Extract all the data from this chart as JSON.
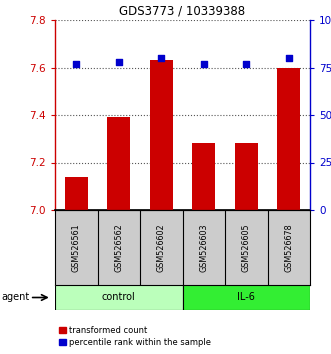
{
  "title": "GDS3773 / 10339388",
  "samples": [
    "GSM526561",
    "GSM526562",
    "GSM526602",
    "GSM526603",
    "GSM526605",
    "GSM526678"
  ],
  "bar_values": [
    7.14,
    7.39,
    7.63,
    7.28,
    7.28,
    7.6
  ],
  "percentile_values": [
    77,
    78,
    80,
    77,
    77,
    80
  ],
  "ylim_left": [
    7.0,
    7.8
  ],
  "ylim_right": [
    0,
    100
  ],
  "yticks_left": [
    7.0,
    7.2,
    7.4,
    7.6,
    7.8
  ],
  "yticks_right": [
    0,
    25,
    50,
    75,
    100
  ],
  "ytick_labels_right": [
    "0",
    "25",
    "50",
    "75",
    "100%"
  ],
  "bar_color": "#cc0000",
  "dot_color": "#0000cc",
  "bar_bottom": 7.0,
  "groups": [
    {
      "label": "control",
      "indices": [
        0,
        1,
        2
      ],
      "color": "#bbffbb"
    },
    {
      "label": "IL-6",
      "indices": [
        3,
        4,
        5
      ],
      "color": "#33ee33"
    }
  ],
  "agent_label": "agent",
  "legend_items": [
    {
      "label": "transformed count",
      "color": "#cc0000"
    },
    {
      "label": "percentile rank within the sample",
      "color": "#0000cc"
    }
  ],
  "grid_color": "#555555",
  "bg_color": "#ffffff",
  "plot_bg": "#ffffff",
  "sample_box_color": "#cccccc"
}
